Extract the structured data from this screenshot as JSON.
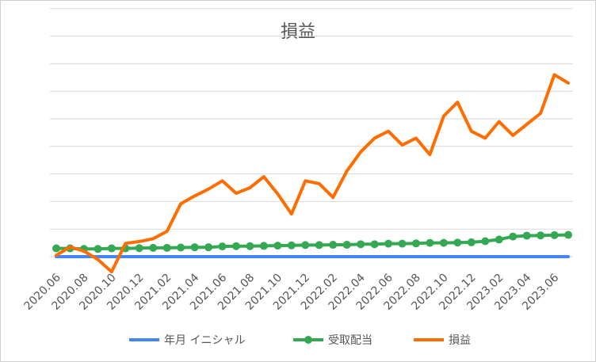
{
  "chart_data": {
    "type": "line",
    "title": "損益",
    "xlabel": "",
    "ylabel": "",
    "grid": true,
    "legend_position": "bottom",
    "ylim": [
      -1,
      11
    ],
    "y_gridlines": [
      0,
      1,
      2,
      3,
      4,
      5,
      6,
      7,
      8,
      9
    ],
    "x": [
      "2020.06",
      "2020.07",
      "2020.08",
      "2020.09",
      "2020.10",
      "2020.11",
      "2020.12",
      "2021.01",
      "2021.02",
      "2021.03",
      "2021.04",
      "2021.05",
      "2021.06",
      "2021.07",
      "2021.08",
      "2021.09",
      "2021.10",
      "2021.11",
      "2021.12",
      "2022.01",
      "2022.02",
      "2022.03",
      "2022.04",
      "2022.05",
      "2022.06",
      "2022.07",
      "2022.08",
      "2022.09",
      "2022.10",
      "2022.11",
      "2022.12",
      "2023.01",
      "2023.02",
      "2023.03",
      "2023.04",
      "2023.05",
      "2023.06",
      "2023.07"
    ],
    "x_tick_labels": [
      "2020.06",
      "2020.08",
      "2020.10",
      "2020.12",
      "2021.02",
      "2021.04",
      "2021.06",
      "2021.08",
      "2021.10",
      "2021.12",
      "2022.02",
      "2022.04",
      "2022.06",
      "2022.08",
      "2022.10",
      "2022.12",
      "2023.02",
      "2023.04",
      "2023.06"
    ],
    "series": [
      {
        "name": "年月 イニシャル",
        "color": "#4285f4",
        "markers": false,
        "values": [
          0,
          0,
          0,
          0,
          0,
          0,
          0,
          0,
          0,
          0,
          0,
          0,
          0,
          0,
          0,
          0,
          0,
          0,
          0,
          0,
          0,
          0,
          0,
          0,
          0,
          0,
          0,
          0,
          0,
          0,
          0,
          0,
          0,
          0,
          0,
          0,
          0,
          0
        ]
      },
      {
        "name": "受取配当",
        "color": "#34a853",
        "markers": true,
        "values": [
          0.3,
          0.3,
          0.28,
          0.28,
          0.3,
          0.3,
          0.31,
          0.32,
          0.32,
          0.33,
          0.34,
          0.34,
          0.37,
          0.38,
          0.38,
          0.39,
          0.4,
          0.41,
          0.42,
          0.42,
          0.43,
          0.43,
          0.45,
          0.45,
          0.47,
          0.47,
          0.48,
          0.5,
          0.5,
          0.51,
          0.52,
          0.56,
          0.62,
          0.73,
          0.76,
          0.77,
          0.78,
          0.79
        ]
      },
      {
        "name": "損益",
        "color": "#ff6d01",
        "markers": false,
        "values": [
          0.05,
          0.35,
          0.2,
          -0.1,
          -0.55,
          0.48,
          0.55,
          0.65,
          0.92,
          1.92,
          2.2,
          2.45,
          2.75,
          2.3,
          2.5,
          2.9,
          2.28,
          1.55,
          2.75,
          2.65,
          2.15,
          3.1,
          3.8,
          4.3,
          4.55,
          4.05,
          4.3,
          3.7,
          5.1,
          5.6,
          4.55,
          4.3,
          4.9,
          4.4,
          4.8,
          5.2,
          6.6,
          6.3
        ]
      }
    ]
  }
}
